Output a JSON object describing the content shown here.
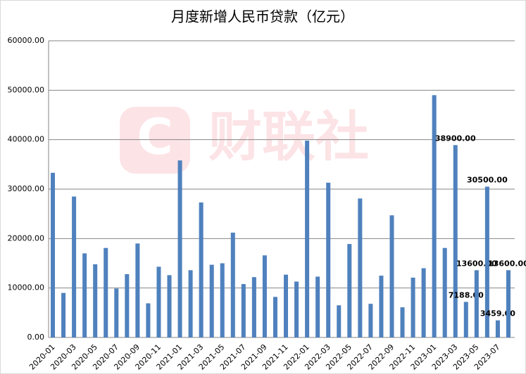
{
  "chart_data": {
    "type": "bar",
    "title": "月度新增人民币贷款（亿元）",
    "watermark": "财联社",
    "categories": [
      "2020-01",
      null,
      "2020-03",
      null,
      "2020-05",
      null,
      "2020-07",
      null,
      "2020-09",
      null,
      "2020-11",
      null,
      "2021-01",
      null,
      "2021-03",
      null,
      "2021-05",
      null,
      "2021-07",
      null,
      "2021-09",
      null,
      "2021-11",
      null,
      "2022-01",
      null,
      "2022-03",
      null,
      "2022-05",
      null,
      "2022-07",
      null,
      "2022-09",
      null,
      "2022-11",
      null,
      "2023-01",
      null,
      "2023-03",
      null,
      "2023-05",
      null,
      "2023-07",
      null
    ],
    "values": [
      33300,
      9000,
      28500,
      17000,
      14800,
      18100,
      9900,
      12800,
      19000,
      6900,
      14300,
      12600,
      35800,
      13600,
      27300,
      14700,
      15000,
      21200,
      10800,
      12200,
      16600,
      8200,
      12700,
      11300,
      39800,
      12300,
      31300,
      6500,
      18900,
      28100,
      6800,
      12500,
      24700,
      6100,
      12100,
      14000,
      49000,
      18100,
      38900,
      7188,
      13600,
      30500,
      3459,
      13600
    ],
    "value_labels": [
      null,
      null,
      null,
      null,
      null,
      null,
      null,
      null,
      null,
      null,
      null,
      null,
      null,
      null,
      null,
      null,
      null,
      null,
      null,
      null,
      null,
      null,
      null,
      null,
      null,
      null,
      null,
      null,
      null,
      null,
      null,
      null,
      null,
      null,
      null,
      null,
      null,
      null,
      "38900.00",
      "7188.00",
      "13600.00",
      "30500.00",
      "3459.00",
      "13600.00"
    ],
    "color": "#4f81bd",
    "ylim": [
      0,
      60000
    ],
    "yticks": [
      {
        "value": 0,
        "label": "0.00"
      },
      {
        "value": 10000,
        "label": "10000.00"
      },
      {
        "value": 20000,
        "label": "20000.00"
      },
      {
        "value": 30000,
        "label": "30000.00"
      },
      {
        "value": 40000,
        "label": "40000.00"
      },
      {
        "value": 50000,
        "label": "50000.00"
      },
      {
        "value": 60000,
        "label": "60000.00"
      }
    ],
    "grid": true
  }
}
